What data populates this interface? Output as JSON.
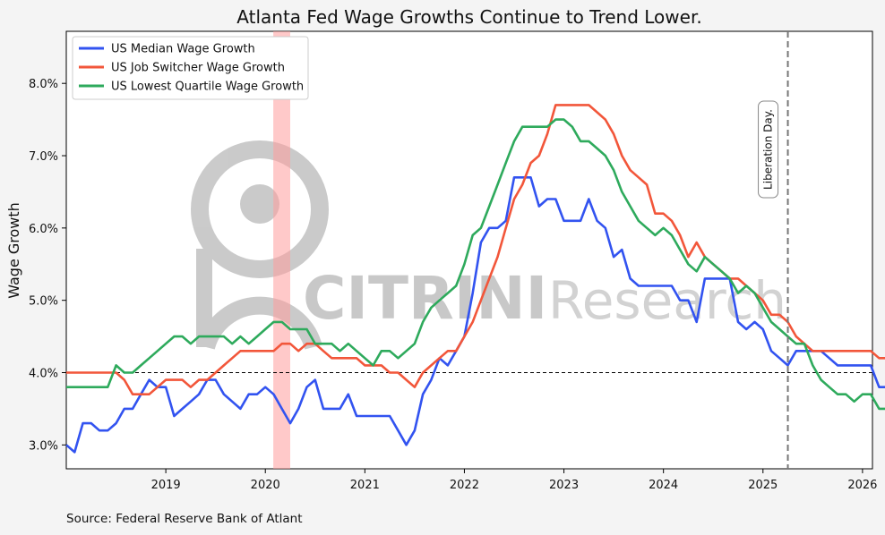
{
  "chart_data": {
    "type": "line",
    "title": "Atlanta Fed Wage Growths Continue to Trend Lower.",
    "xlabel": "",
    "ylabel": "Wage Growth",
    "source": "Source: Federal Reserve Bank of Atlant",
    "xlim": [
      2018.0,
      2026.1
    ],
    "ylim": [
      2.67,
      8.72
    ],
    "x_ticks": [
      2019,
      2020,
      2021,
      2022,
      2023,
      2024,
      2025,
      2026
    ],
    "y_ticks": [
      3.0,
      4.0,
      5.0,
      6.0,
      7.0,
      8.0
    ],
    "y_tick_labels": [
      "3.0%",
      "4.0%",
      "5.0%",
      "6.0%",
      "7.0%",
      "8.0%"
    ],
    "grid": false,
    "legend_position": "upper-left",
    "reference_line": {
      "y": 4.0,
      "style": "dashed",
      "color": "#000000"
    },
    "shaded_region": {
      "x_start": 2020.08,
      "x_end": 2020.25,
      "color": "#ff9c9c"
    },
    "event_line": {
      "x": 2025.25,
      "label": "Liberation Day.",
      "color": "#777777"
    },
    "watermark": {
      "word1": "CITRINI",
      "word2": "Research"
    },
    "series": [
      {
        "name": "US Median Wage Growth",
        "color": "#3253f0",
        "x_start": 2018.0,
        "x_step": 0.08333,
        "values": [
          3.0,
          2.9,
          3.3,
          3.3,
          3.2,
          3.2,
          3.3,
          3.5,
          3.5,
          3.7,
          3.9,
          3.8,
          3.8,
          3.4,
          3.5,
          3.6,
          3.7,
          3.9,
          3.9,
          3.7,
          3.6,
          3.5,
          3.7,
          3.7,
          3.8,
          3.7,
          3.5,
          3.3,
          3.5,
          3.8,
          3.9,
          3.5,
          3.5,
          3.5,
          3.7,
          3.4,
          3.4,
          3.4,
          3.4,
          3.4,
          3.2,
          3.0,
          3.2,
          3.7,
          3.9,
          4.2,
          4.1,
          4.3,
          4.5,
          5.1,
          5.8,
          6.0,
          6.0,
          6.1,
          6.7,
          6.7,
          6.7,
          6.3,
          6.4,
          6.4,
          6.1,
          6.1,
          6.1,
          6.4,
          6.1,
          6.0,
          5.6,
          5.7,
          5.3,
          5.2,
          5.2,
          5.2,
          5.2,
          5.2,
          5.0,
          5.0,
          4.7,
          5.3,
          5.3,
          5.3,
          5.3,
          4.7,
          4.6,
          4.7,
          4.6,
          4.3,
          4.2,
          4.1,
          4.3,
          4.3,
          4.3,
          4.3,
          4.2,
          4.1,
          4.1,
          4.1,
          4.1,
          4.1,
          3.8,
          3.8
        ]
      },
      {
        "name": "US Job Switcher Wage Growth",
        "color": "#f2563a",
        "x_start": 2018.0,
        "x_step": 0.08333,
        "values": [
          4.0,
          4.0,
          4.0,
          4.0,
          4.0,
          4.0,
          4.0,
          3.9,
          3.7,
          3.7,
          3.7,
          3.8,
          3.9,
          3.9,
          3.9,
          3.8,
          3.9,
          3.9,
          4.0,
          4.1,
          4.2,
          4.3,
          4.3,
          4.3,
          4.3,
          4.3,
          4.4,
          4.4,
          4.3,
          4.4,
          4.4,
          4.3,
          4.2,
          4.2,
          4.2,
          4.2,
          4.1,
          4.1,
          4.1,
          4.0,
          4.0,
          3.9,
          3.8,
          4.0,
          4.1,
          4.2,
          4.3,
          4.3,
          4.5,
          4.7,
          5.0,
          5.3,
          5.6,
          6.0,
          6.4,
          6.6,
          6.9,
          7.0,
          7.3,
          7.7,
          7.7,
          7.7,
          7.7,
          7.7,
          7.6,
          7.5,
          7.3,
          7.0,
          6.8,
          6.7,
          6.6,
          6.2,
          6.2,
          6.1,
          5.9,
          5.6,
          5.8,
          5.6,
          5.5,
          5.4,
          5.3,
          5.3,
          5.2,
          5.1,
          5.0,
          4.8,
          4.8,
          4.7,
          4.5,
          4.4,
          4.3,
          4.3,
          4.3,
          4.3,
          4.3,
          4.3,
          4.3,
          4.3,
          4.2,
          4.2
        ]
      },
      {
        "name": "US Lowest Quartile Wage Growth",
        "color": "#2eaa5c",
        "x_start": 2018.0,
        "x_step": 0.08333,
        "values": [
          3.8,
          3.8,
          3.8,
          3.8,
          3.8,
          3.8,
          4.1,
          4.0,
          4.0,
          4.1,
          4.2,
          4.3,
          4.4,
          4.5,
          4.5,
          4.4,
          4.5,
          4.5,
          4.5,
          4.5,
          4.4,
          4.5,
          4.4,
          4.5,
          4.6,
          4.7,
          4.7,
          4.6,
          4.6,
          4.6,
          4.4,
          4.4,
          4.4,
          4.3,
          4.4,
          4.3,
          4.2,
          4.1,
          4.3,
          4.3,
          4.2,
          4.3,
          4.4,
          4.7,
          4.9,
          5.0,
          5.1,
          5.2,
          5.5,
          5.9,
          6.0,
          6.3,
          6.6,
          6.9,
          7.2,
          7.4,
          7.4,
          7.4,
          7.4,
          7.5,
          7.5,
          7.4,
          7.2,
          7.2,
          7.1,
          7.0,
          6.8,
          6.5,
          6.3,
          6.1,
          6.0,
          5.9,
          6.0,
          5.9,
          5.7,
          5.5,
          5.4,
          5.6,
          5.5,
          5.4,
          5.3,
          5.1,
          5.2,
          5.1,
          4.9,
          4.7,
          4.6,
          4.5,
          4.4,
          4.4,
          4.1,
          3.9,
          3.8,
          3.7,
          3.7,
          3.6,
          3.7,
          3.7,
          3.5,
          3.5
        ]
      }
    ]
  }
}
